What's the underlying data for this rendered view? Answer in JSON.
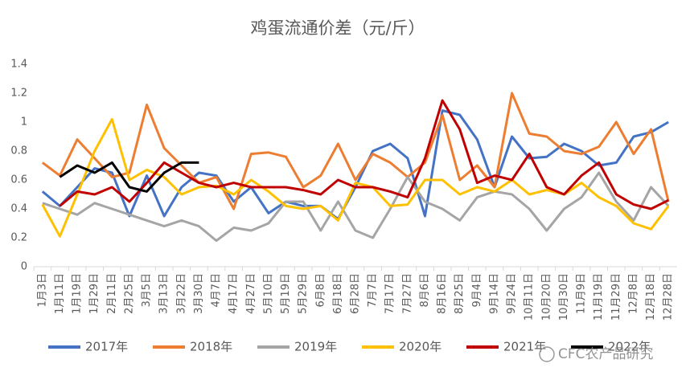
{
  "chart_data": {
    "type": "line",
    "title": "鸡蛋流通价差（元/斤）",
    "categories": [
      "1月3日",
      "1月11日",
      "1月19日",
      "1月29日",
      "2月11日",
      "2月25日",
      "3月5日",
      "3月13日",
      "3月22日",
      "3月30日",
      "4月7日",
      "4月17日",
      "4月27日",
      "5月10日",
      "5月19日",
      "5月29日",
      "6月8日",
      "6月18日",
      "6月28日",
      "7月7日",
      "7月17日",
      "7月27日",
      "8月6日",
      "8月16日",
      "8月25日",
      "9月4日",
      "9月14日",
      "9月24日",
      "10月11日",
      "10月20日",
      "10月30日",
      "11月9日",
      "11月19日",
      "11月29日",
      "12月8日",
      "12月18日",
      "12月28日"
    ],
    "series": [
      {
        "name": "2017年",
        "color": "#4472c4",
        "values": [
          0.52,
          0.42,
          0.55,
          0.68,
          0.65,
          0.35,
          0.63,
          0.35,
          0.55,
          0.65,
          0.63,
          0.45,
          0.55,
          0.37,
          0.45,
          0.42,
          0.42,
          0.33,
          0.55,
          0.8,
          0.85,
          0.75,
          0.35,
          1.08,
          1.05,
          0.88,
          0.55,
          0.9,
          0.75,
          0.76,
          0.85,
          0.8,
          0.7,
          0.72,
          0.9,
          0.93,
          1.0
        ]
      },
      {
        "name": "2018年",
        "color": "#ed7d31",
        "values": [
          0.72,
          0.63,
          0.88,
          0.75,
          0.62,
          0.65,
          1.12,
          0.82,
          0.7,
          0.58,
          0.62,
          0.4,
          0.78,
          0.79,
          0.76,
          0.55,
          0.63,
          0.85,
          0.6,
          0.78,
          0.72,
          0.62,
          0.72,
          1.05,
          0.6,
          0.7,
          0.55,
          1.2,
          0.92,
          0.9,
          0.8,
          0.78,
          0.83,
          1.0,
          0.78,
          0.95,
          0.45
        ]
      },
      {
        "name": "2019年",
        "color": "#a5a5a5",
        "values": [
          0.44,
          0.4,
          0.36,
          0.44,
          0.4,
          0.36,
          0.32,
          0.28,
          0.32,
          0.28,
          0.18,
          0.27,
          0.25,
          0.3,
          0.45,
          0.45,
          0.25,
          0.45,
          0.25,
          0.2,
          0.4,
          0.62,
          0.45,
          0.4,
          0.32,
          0.48,
          0.52,
          0.5,
          0.4,
          0.25,
          0.4,
          0.48,
          0.65,
          0.45,
          0.32,
          0.55,
          0.42
        ]
      },
      {
        "name": "2020年",
        "color": "#ffc000",
        "values": [
          0.43,
          0.21,
          0.5,
          0.8,
          1.02,
          0.6,
          0.67,
          0.62,
          0.5,
          0.55,
          0.56,
          0.5,
          0.6,
          0.52,
          0.42,
          0.4,
          0.42,
          0.32,
          0.58,
          0.55,
          0.42,
          0.43,
          0.6,
          0.6,
          0.5,
          0.55,
          0.52,
          0.6,
          0.5,
          0.53,
          0.5,
          0.58,
          0.48,
          0.42,
          0.3,
          0.26,
          0.42
        ]
      },
      {
        "name": "2021年",
        "color": "#c00000",
        "values": [
          null,
          0.42,
          0.52,
          0.5,
          0.55,
          0.45,
          0.58,
          0.72,
          0.65,
          0.58,
          0.55,
          0.58,
          0.55,
          0.55,
          0.55,
          0.53,
          0.5,
          0.6,
          0.55,
          0.55,
          0.52,
          0.48,
          0.75,
          1.15,
          0.95,
          0.58,
          0.63,
          0.6,
          0.78,
          0.55,
          0.5,
          0.63,
          0.72,
          0.5,
          0.43,
          0.4,
          0.46
        ]
      },
      {
        "name": "2022年",
        "color": "#000000",
        "values": [
          null,
          0.62,
          0.7,
          0.65,
          0.72,
          0.55,
          0.52,
          0.65,
          0.72,
          0.72,
          null,
          null,
          null,
          null,
          null,
          null,
          null,
          null,
          null,
          null,
          null,
          null,
          null,
          null,
          null,
          null,
          null,
          null,
          null,
          null,
          null,
          null,
          null,
          null,
          null,
          null,
          null
        ]
      }
    ],
    "ylim": [
      0,
      1.4
    ],
    "yticks": [
      0,
      0.2,
      0.4,
      0.6,
      0.8,
      1,
      1.2,
      1.4
    ],
    "grid": false,
    "watermark": "CFC农产品研究"
  }
}
